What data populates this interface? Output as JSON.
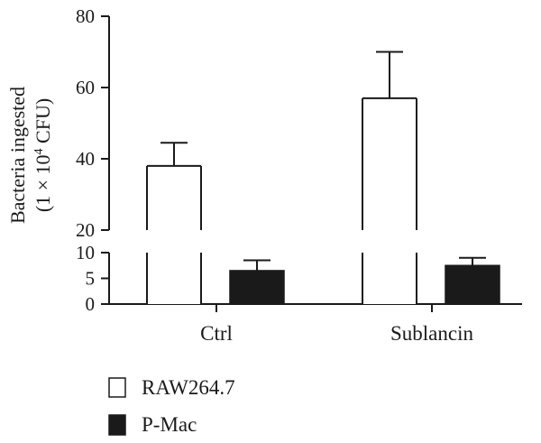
{
  "chart_data": {
    "type": "bar",
    "title": "",
    "xlabel": "",
    "ylabel_line1": "Bacteria ingested",
    "ylabel_line2_prefix": "(1 × 10",
    "ylabel_line2_sup": "4",
    "ylabel_line2_suffix": " CFU)",
    "categories": [
      "Ctrl",
      "Sublancin"
    ],
    "series": [
      {
        "name": "RAW264.7",
        "values": [
          38,
          57
        ],
        "errors": [
          6.5,
          13
        ],
        "color": "#ffffff"
      },
      {
        "name": "P-Mac",
        "values": [
          6.5,
          7.5
        ],
        "errors": [
          2.0,
          1.5
        ],
        "color": "#1a1a1a"
      }
    ],
    "y_axis": {
      "broken": true,
      "lower_segment": {
        "range": [
          0,
          10
        ],
        "ticks": [
          "0",
          "5",
          "10"
        ]
      },
      "upper_segment": {
        "range": [
          20,
          80
        ],
        "ticks": [
          "20",
          "40",
          "60",
          "80"
        ]
      }
    },
    "legend_position": "bottom-left",
    "grid": false
  }
}
